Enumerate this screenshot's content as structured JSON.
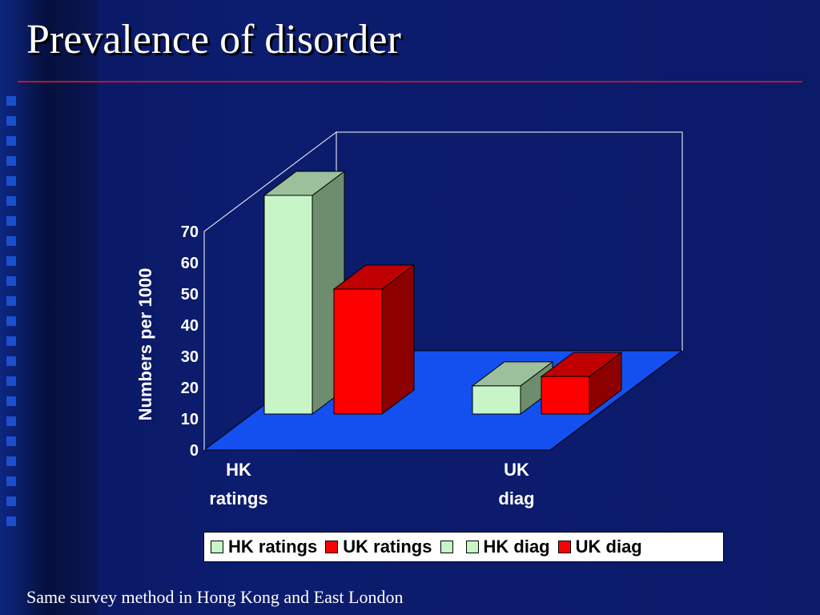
{
  "slide": {
    "title": "Prevalence of disorder",
    "footer": "Same survey method in Hong Kong and East London"
  },
  "colors": {
    "accent_rule": "#c0142a",
    "floor": "#1450f0",
    "hk_front": "#c8f5c8",
    "hk_side": "#6e8c6e",
    "hk_top": "#9cc09c",
    "uk_front": "#ff0000",
    "uk_side": "#8c0000",
    "uk_top": "#c00000"
  },
  "chart_data": {
    "type": "bar",
    "style": "3d",
    "title": "",
    "ylabel": "Numbers per 1000",
    "ylim": [
      0,
      70
    ],
    "yticks": [
      0,
      10,
      20,
      30,
      40,
      50,
      60,
      70
    ],
    "categories": [
      {
        "line1": "HK",
        "line2": "ratings"
      },
      {
        "line1": "UK",
        "line2": "diag"
      }
    ],
    "series": [
      {
        "name": "HK ratings",
        "color": "#c8f5c8",
        "values": [
          70,
          null
        ]
      },
      {
        "name": "UK ratings",
        "color": "#ff0000",
        "values": [
          40,
          null
        ]
      },
      {
        "name": "",
        "color": "#c8f5c8",
        "values": [
          null,
          null
        ]
      },
      {
        "name": "HK diag",
        "color": "#c8f5c8",
        "values": [
          null,
          9
        ]
      },
      {
        "name": "UK diag",
        "color": "#ff0000",
        "values": [
          null,
          12
        ]
      }
    ],
    "legend": {
      "position": "bottom",
      "entries": [
        {
          "name": "HK ratings",
          "color": "#c8f5c8"
        },
        {
          "name": "UK ratings",
          "color": "#ff0000"
        },
        {
          "name": "",
          "color": "#c8f5c8"
        },
        {
          "name": "HK diag",
          "color": "#c8f5c8"
        },
        {
          "name": "UK diag",
          "color": "#ff0000"
        }
      ]
    },
    "grid": false
  }
}
